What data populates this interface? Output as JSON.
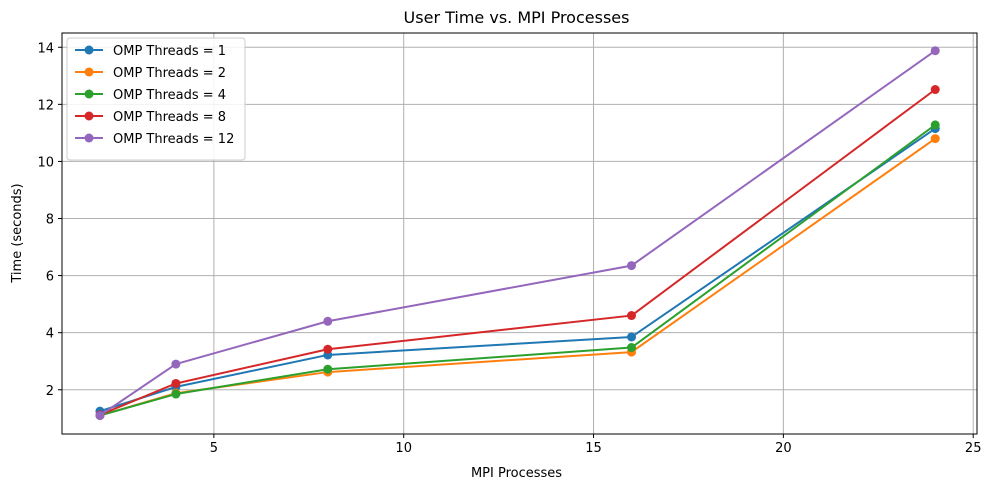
{
  "chart_data": {
    "type": "line",
    "title": "User Time vs. MPI Processes",
    "xlabel": "MPI Processes",
    "ylabel": "Time (seconds)",
    "x": [
      2,
      4,
      8,
      16,
      24
    ],
    "xlim": [
      1,
      25.1
    ],
    "ylim": [
      0.45,
      14.5
    ],
    "xticks": [
      5,
      10,
      15,
      20,
      25
    ],
    "yticks": [
      2,
      4,
      6,
      8,
      10,
      12,
      14
    ],
    "grid": true,
    "legend_position": "top-left",
    "series": [
      {
        "name": "OMP Threads = 1",
        "color": "#1f77b4",
        "values": [
          1.25,
          2.1,
          3.22,
          3.85,
          11.15
        ]
      },
      {
        "name": "OMP Threads = 2",
        "color": "#ff7f0e",
        "values": [
          1.1,
          1.88,
          2.62,
          3.32,
          10.8
        ]
      },
      {
        "name": "OMP Threads = 4",
        "color": "#2ca02c",
        "values": [
          1.1,
          1.85,
          2.72,
          3.48,
          11.28
        ]
      },
      {
        "name": "OMP Threads = 8",
        "color": "#d62728",
        "values": [
          1.12,
          2.22,
          3.42,
          4.6,
          12.52
        ]
      },
      {
        "name": "OMP Threads = 12",
        "color": "#9467bd",
        "values": [
          1.1,
          2.9,
          4.4,
          6.35,
          13.88
        ]
      }
    ]
  }
}
